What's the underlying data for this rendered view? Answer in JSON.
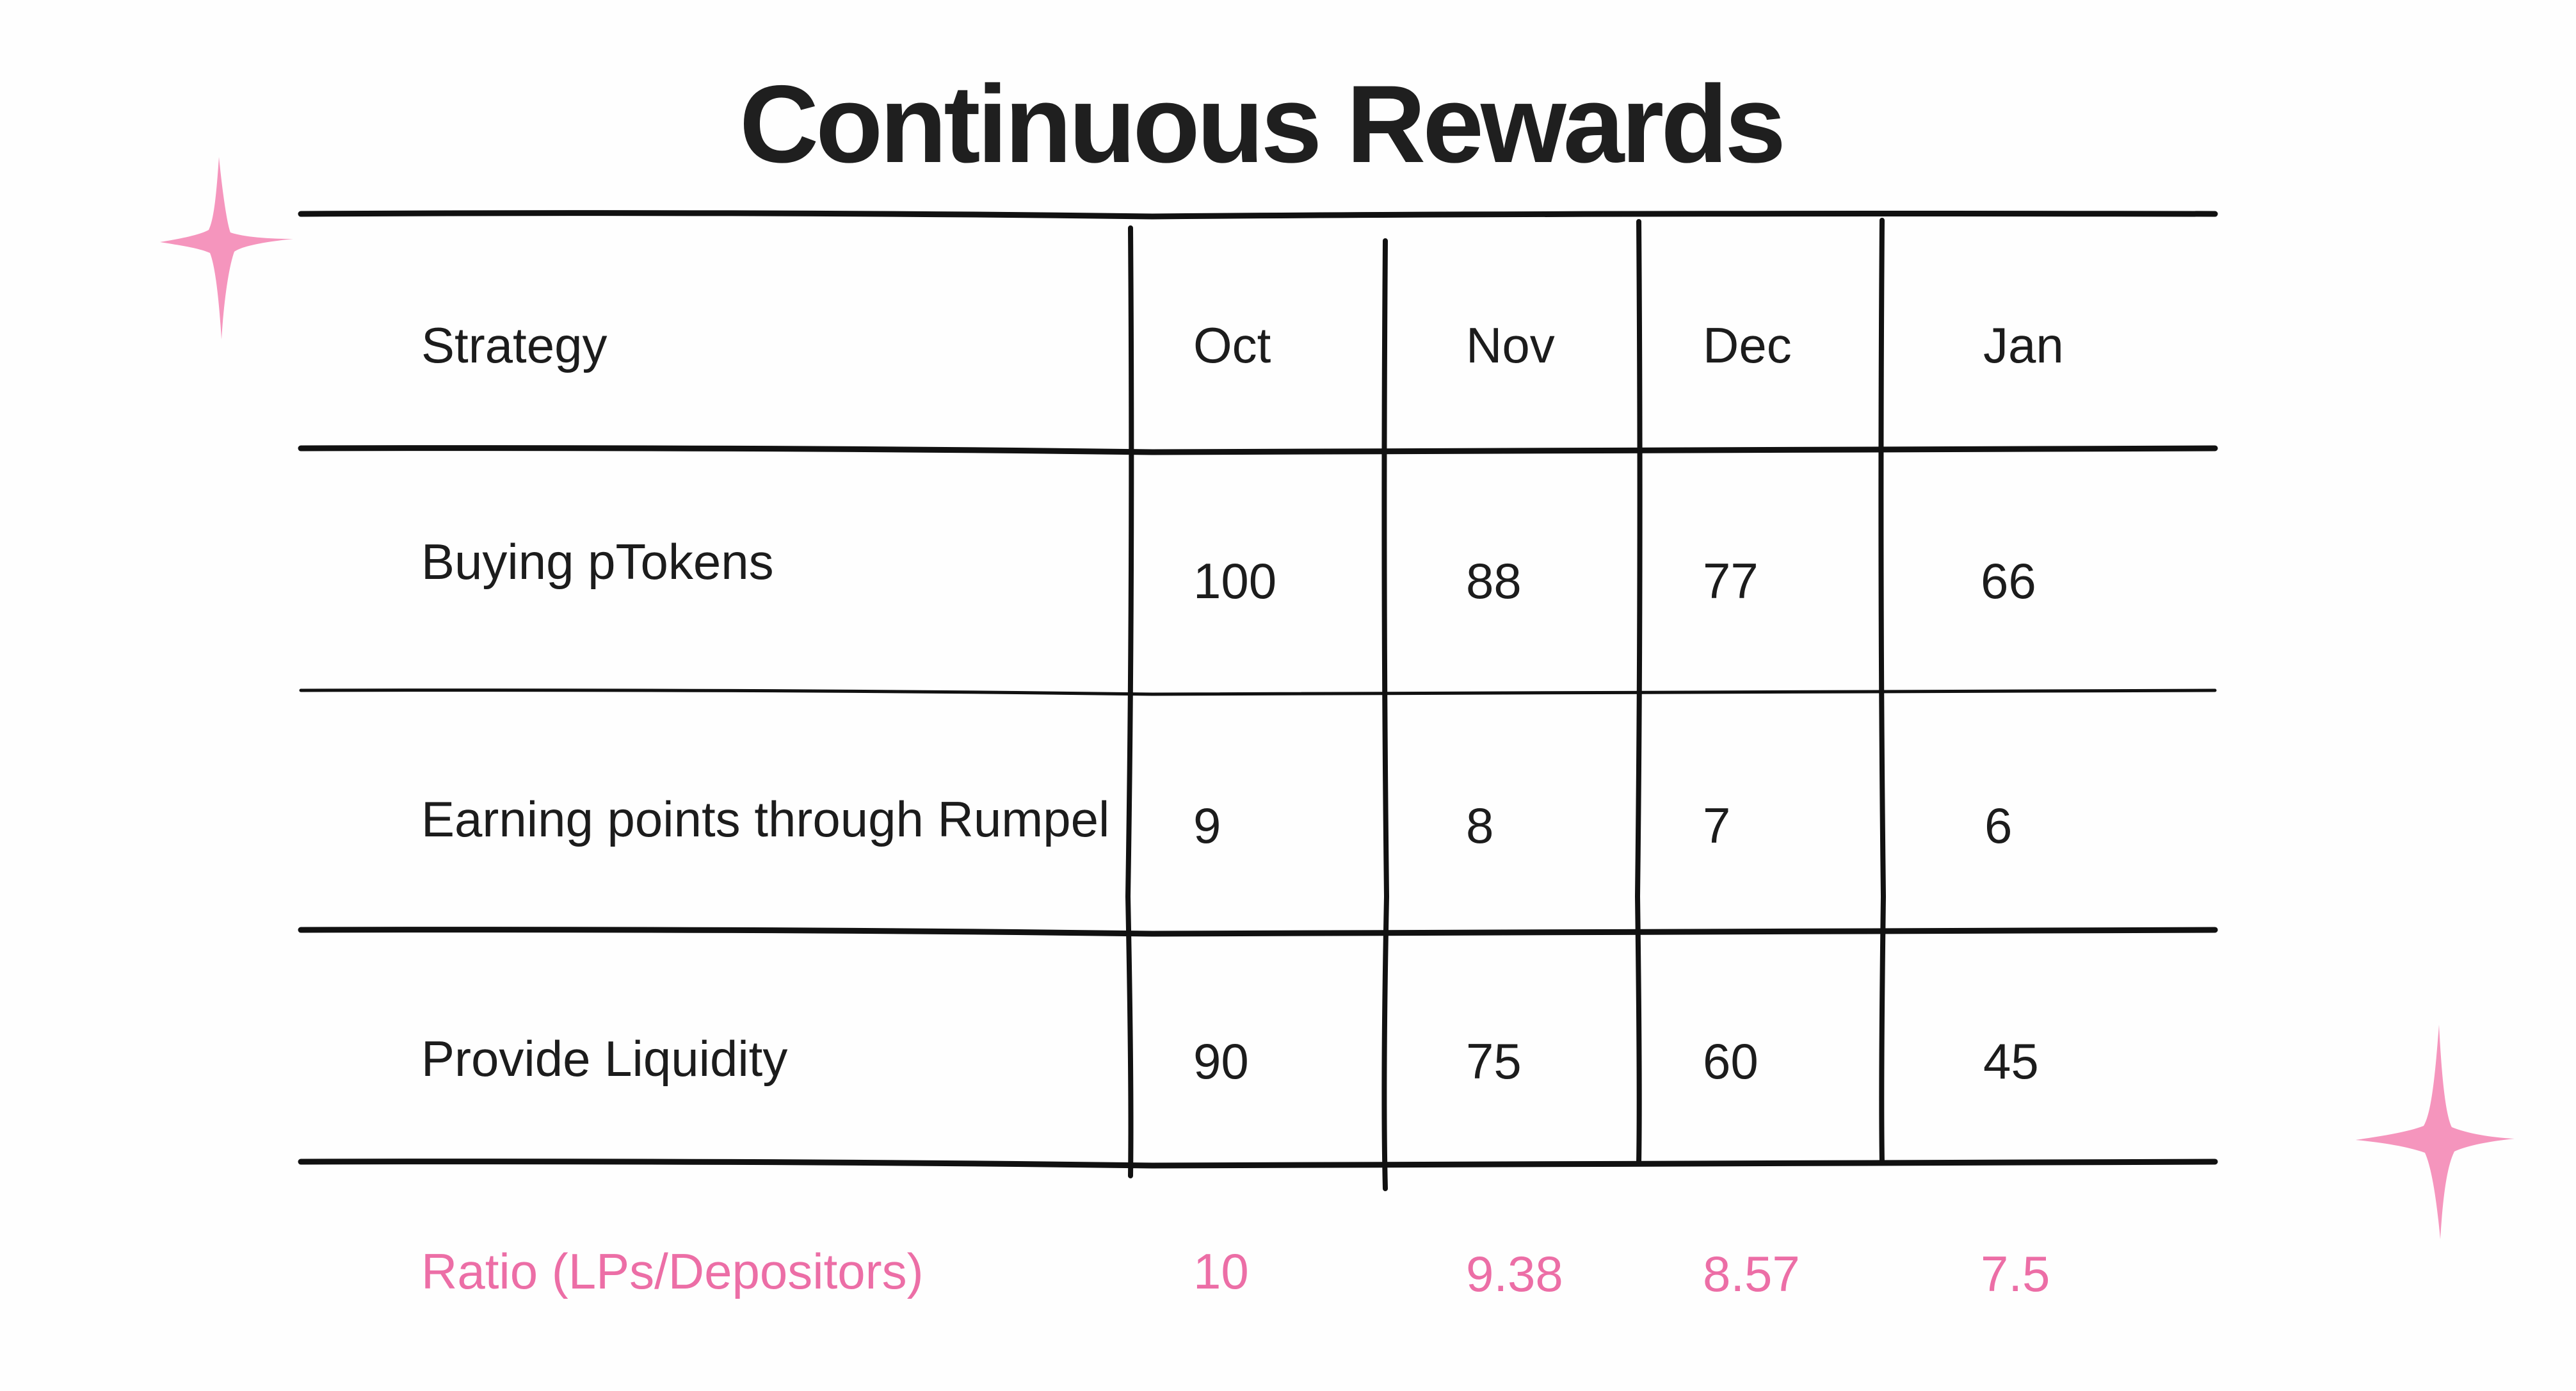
{
  "title": "Continuous Rewards",
  "colors": {
    "text": "#1c1c1c",
    "ratio": "#ec6ea6",
    "sparkle": "#f595bd",
    "lines": "#111111"
  },
  "icons": [
    "sparkle-icon",
    "sparkle-icon"
  ],
  "chart_data": {
    "type": "table",
    "title": "Continuous Rewards",
    "columns": [
      "Strategy",
      "Oct",
      "Nov",
      "Dec",
      "Jan"
    ],
    "rows": [
      {
        "strategy": "Buying pTokens",
        "values": [
          "100",
          "88",
          "77",
          "66"
        ]
      },
      {
        "strategy": "Earning points through Rumpel",
        "values": [
          "9",
          "8",
          "7",
          "6"
        ]
      },
      {
        "strategy": "Provide Liquidity",
        "values": [
          "90",
          "75",
          "60",
          "45"
        ]
      }
    ],
    "ratio_row": {
      "label": "Ratio (LPs/Depositors)",
      "values": [
        "10",
        "9.38",
        "8.57",
        "7.5"
      ]
    }
  }
}
